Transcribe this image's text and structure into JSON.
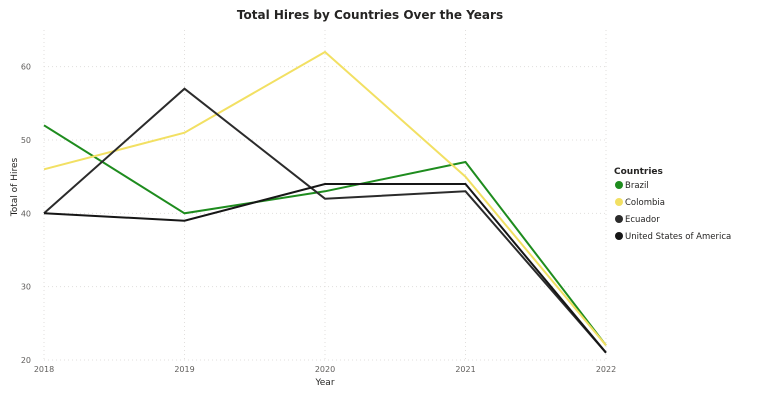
{
  "chart_data": {
    "type": "line",
    "title": "Total Hires by Countries Over the Years",
    "xlabel": "Year",
    "ylabel": "Total of Hires",
    "categories": [
      "2018",
      "2019",
      "2020",
      "2021",
      "2022"
    ],
    "ylim": [
      20,
      65
    ],
    "yticks": [
      20,
      30,
      40,
      50,
      60
    ],
    "grid": true,
    "legend": {
      "title": "Countries",
      "position": "right"
    },
    "series": [
      {
        "name": "Brazil",
        "color": "#1e8c1e",
        "values": [
          52,
          40,
          43,
          47,
          22
        ]
      },
      {
        "name": "Colombia",
        "color": "#f2e063",
        "values": [
          46,
          51,
          62,
          45,
          22
        ]
      },
      {
        "name": "Ecuador",
        "color": "#2b2b2b",
        "values": [
          40,
          57,
          42,
          43,
          21
        ]
      },
      {
        "name": "United States of America",
        "color": "#161616",
        "values": [
          40,
          39,
          44,
          44,
          21
        ]
      }
    ]
  }
}
